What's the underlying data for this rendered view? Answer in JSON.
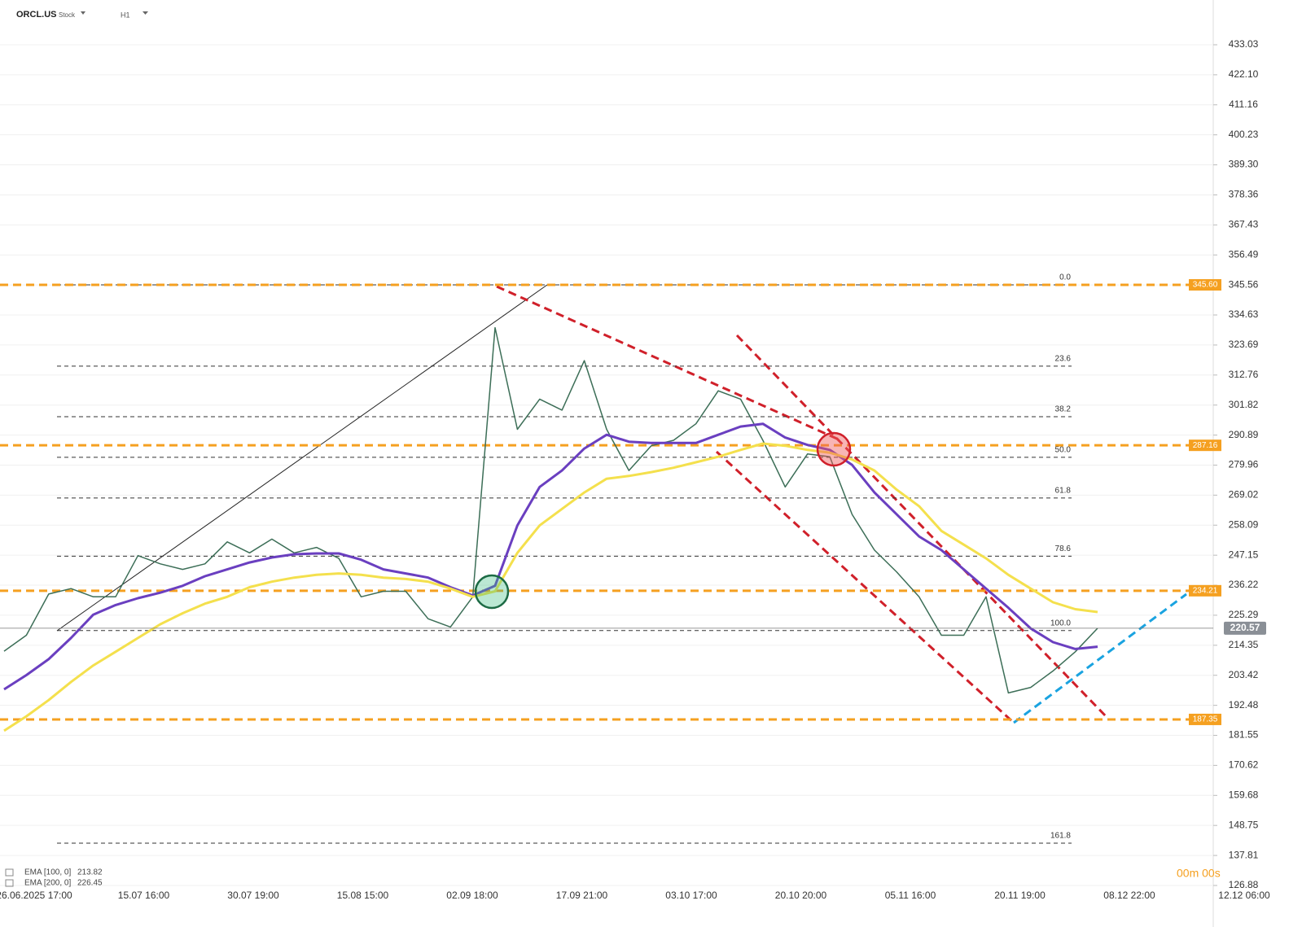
{
  "header": {
    "symbol": "ORCL.US",
    "kind": "Stock",
    "interval": "H1"
  },
  "chart_data": {
    "type": "line",
    "x_labels": [
      "26.06.2025  17:00",
      "15.07  16:00",
      "30.07  19:00",
      "15.08  15:00",
      "02.09  18:00",
      "17.09  21:00",
      "03.10  17:00",
      "20.10  20:00",
      "05.11  16:00",
      "20.11  19:00",
      "08.12  22:00",
      "12.12  06:00"
    ],
    "ylim": [
      126.28,
      449.33
    ],
    "yticks": [
      433.03,
      {
        "value": 422.1,
        "label": "422.10"
      },
      411.16,
      400.23,
      {
        "value": 389.3,
        "label": "389.30"
      },
      378.36,
      367.43,
      356.49,
      345.56,
      334.63,
      323.69,
      312.76,
      301.82,
      290.89,
      279.96,
      269.02,
      258.09,
      247.15,
      236.22,
      225.29,
      214.35,
      203.42,
      192.48,
      181.55,
      170.62,
      159.68,
      148.75,
      137.81,
      126.88
    ],
    "grid": true,
    "series": [
      {
        "name": "ORCL.US",
        "color": "#3c6e57",
        "values": [
          212.2,
          218,
          233,
          235,
          232,
          232,
          247,
          244,
          242,
          244,
          252,
          248,
          253,
          248,
          250,
          246,
          232,
          234,
          234,
          224,
          221,
          232,
          330,
          293,
          304,
          300,
          318,
          293,
          278,
          287,
          289,
          295,
          307,
          304,
          289,
          272,
          284,
          283,
          262,
          249,
          241,
          232,
          218,
          218,
          232,
          197,
          199,
          205,
          212,
          220.57
        ]
      },
      {
        "name": "EMA [100, 0]",
        "color": "#6a3fc0",
        "values": [
          198.3,
          203.5,
          209.3,
          217,
          225.5,
          229,
          231.5,
          233.5,
          236,
          239.5,
          242,
          244.5,
          246.3,
          247.5,
          247.8,
          247.8,
          245.5,
          242,
          240.5,
          239,
          235.5,
          232.5,
          236,
          258,
          272,
          278,
          286,
          291,
          288.5,
          288,
          288,
          288,
          291,
          294,
          295,
          290,
          287.3,
          285.5,
          280,
          270,
          262,
          254,
          249,
          242,
          235,
          228,
          220.5,
          215.5,
          213,
          213.82
        ]
      },
      {
        "name": "EMA [200, 0]",
        "color": "#f4e04d",
        "values": [
          183.2,
          188.5,
          194.4,
          201,
          207,
          212,
          217,
          222,
          226,
          229.5,
          232,
          235.5,
          237.5,
          239,
          240,
          240.5,
          240,
          239,
          238.5,
          237.5,
          235,
          232,
          234,
          248,
          258,
          264,
          270,
          275,
          276,
          277.4,
          279,
          281,
          283,
          285.5,
          287.8,
          287,
          285.5,
          284.5,
          282,
          278,
          271,
          265,
          256,
          251,
          246,
          240,
          235,
          230,
          227.5,
          226.45
        ]
      }
    ],
    "levels": [
      {
        "value": 345.6,
        "label": "345.60"
      },
      {
        "value": 287.16,
        "label": "287.16"
      },
      {
        "value": 234.21,
        "label": "234.21"
      },
      {
        "value": 187.35,
        "label": "187.35"
      }
    ],
    "fib": {
      "labels": [
        "0.0",
        "23.6",
        "38.2",
        "50.0",
        "61.8",
        "78.6",
        "100.0",
        "161.8"
      ],
      "prices": [
        345.6,
        316.0,
        297.6,
        282.8,
        268.0,
        246.8,
        219.7,
        142.3
      ]
    },
    "timer": "00m 00s"
  }
}
